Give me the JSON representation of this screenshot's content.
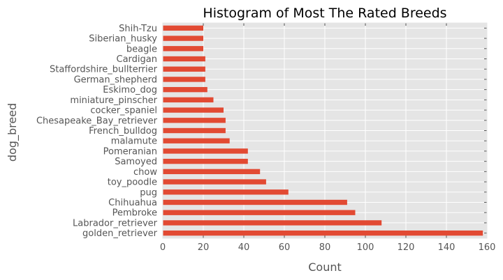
{
  "chart_data": {
    "type": "bar",
    "orientation": "horizontal",
    "title": "Histogram of Most The Rated Breeds",
    "xlabel": "Count",
    "ylabel": "dog_breed",
    "xlim": [
      0,
      160
    ],
    "xticks": [
      "0",
      "20",
      "40",
      "60",
      "80",
      "100",
      "120",
      "140",
      "160"
    ],
    "grid": true,
    "categories": [
      "golden_retriever",
      "Labrador_retriever",
      "Pembroke",
      "Chihuahua",
      "pug",
      "toy_poodle",
      "chow",
      "Samoyed",
      "Pomeranian",
      "malamute",
      "French_bulldog",
      "Chesapeake_Bay_retriever",
      "cocker_spaniel",
      "miniature_pinscher",
      "Eskimo_dog",
      "German_shepherd",
      "Staffordshire_bullterrier",
      "Cardigan",
      "beagle",
      "Siberian_husky",
      "Shih-Tzu"
    ],
    "values": [
      158,
      108,
      95,
      91,
      62,
      51,
      48,
      42,
      42,
      33,
      31,
      31,
      30,
      25,
      22,
      21,
      21,
      21,
      20,
      20,
      20
    ],
    "colors": {
      "bar": "#E24A33",
      "plot_background": "#E5E5E5",
      "grid": "#FFFFFF",
      "text": "#555555"
    }
  }
}
